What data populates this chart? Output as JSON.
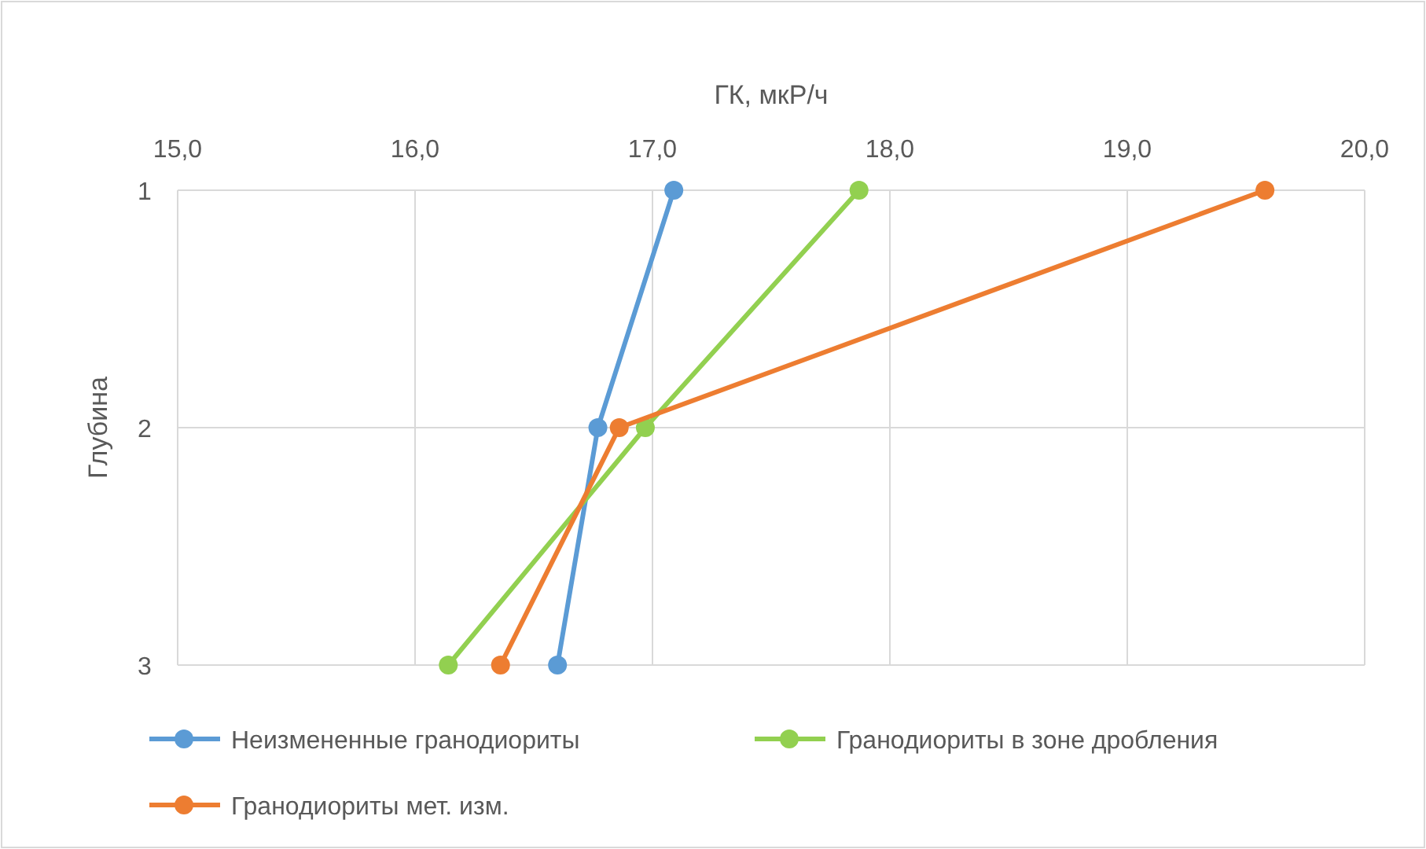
{
  "chart_data": {
    "type": "line",
    "xlabel": "ГК, мкР/ч",
    "ylabel": "Глубина",
    "xlim": [
      15,
      20
    ],
    "xticks": [
      {
        "value": 15,
        "label": "15,0"
      },
      {
        "value": 16,
        "label": "16,0"
      },
      {
        "value": 17,
        "label": "17,0"
      },
      {
        "value": 18,
        "label": "18,0"
      },
      {
        "value": 19,
        "label": "19,0"
      },
      {
        "value": 20,
        "label": "20,0"
      }
    ],
    "ylim": [
      3,
      1
    ],
    "yticks": [
      1,
      2,
      3
    ],
    "grid": true,
    "legend": "bottom",
    "marker": "circle",
    "line_style": "solid",
    "series": [
      {
        "name": "Неизмененные гранодиориты",
        "color": "#5b9bd5",
        "x": [
          17.09,
          16.77,
          16.6
        ],
        "values": [
          1,
          2,
          3
        ]
      },
      {
        "name": "Гранодиориты в зоне дробления",
        "color": "#92d050",
        "x": [
          17.87,
          16.97,
          16.14
        ],
        "values": [
          1,
          2,
          3
        ]
      },
      {
        "name": "Гранодиориты мет. изм.",
        "color": "#ed7d31",
        "x": [
          19.58,
          16.86,
          16.36
        ],
        "values": [
          1,
          2,
          3
        ]
      }
    ]
  }
}
